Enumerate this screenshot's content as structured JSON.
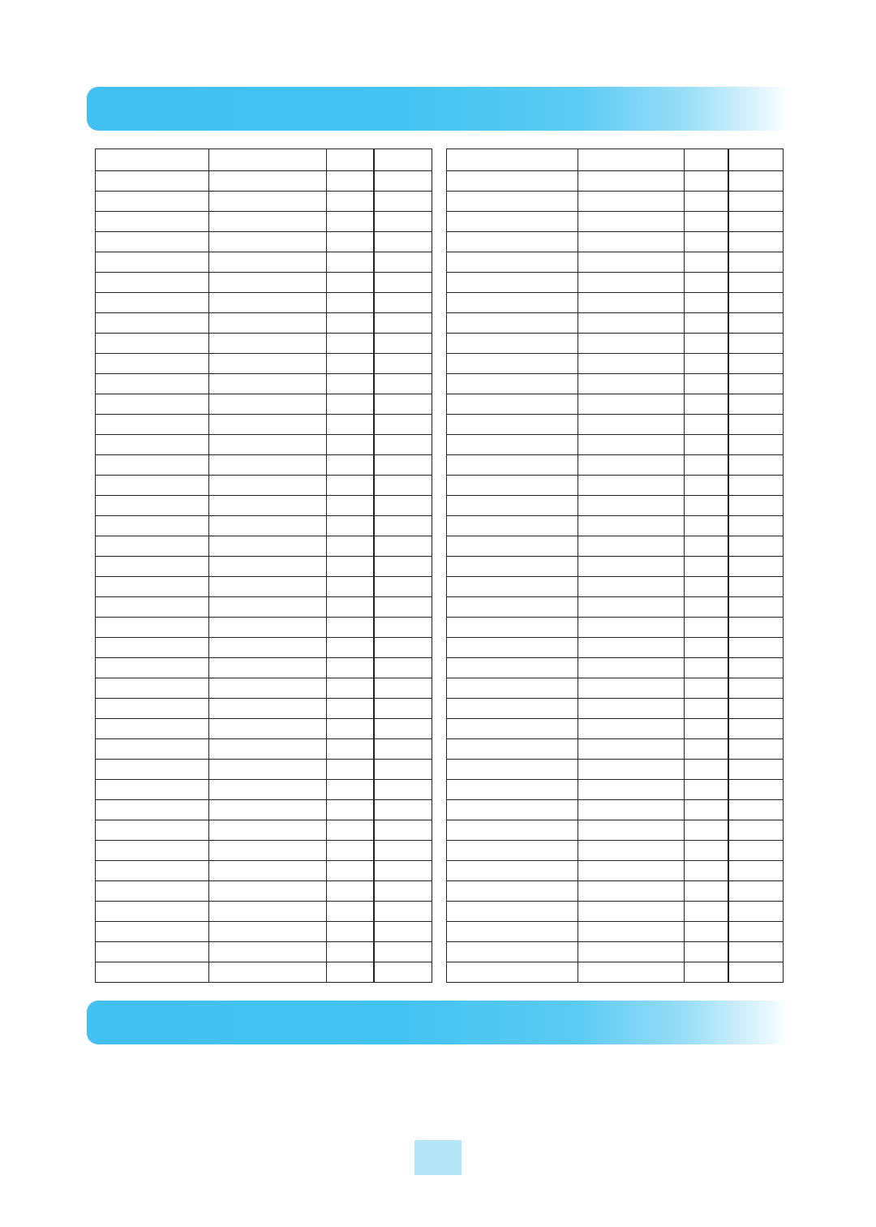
{
  "colors": {
    "band": "#41c0f1",
    "page_box": "#b4e6f8",
    "grid": "#222222"
  },
  "tables": [
    {
      "id": "left",
      "headers": [
        "",
        "",
        "",
        ""
      ],
      "rows": []
    },
    {
      "id": "right",
      "headers": [
        "",
        "",
        "",
        ""
      ],
      "rows": []
    }
  ]
}
